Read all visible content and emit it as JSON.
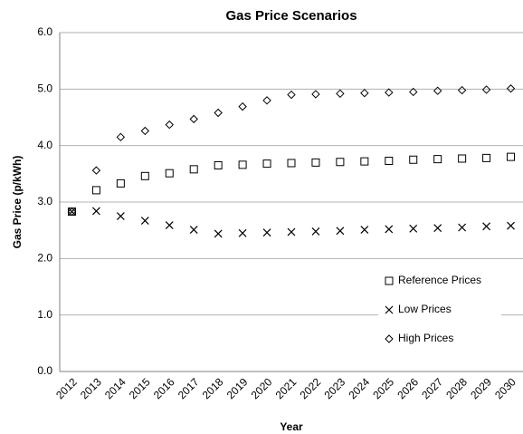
{
  "chart_data": {
    "type": "scatter",
    "title": "Gas Price Scenarios",
    "x_label": "Year",
    "y_label": "Gas Price (p/kWh)",
    "categories": [
      "2012",
      "2013",
      "2014",
      "2015",
      "2016",
      "2017",
      "2018",
      "2019",
      "2020",
      "2021",
      "2022",
      "2023",
      "2024",
      "2025",
      "2026",
      "2027",
      "2028",
      "2029",
      "2030"
    ],
    "series": [
      {
        "name": "Reference Prices",
        "color": "#000000",
        "marker": "square",
        "values": [
          2.83,
          3.21,
          3.33,
          3.46,
          3.51,
          3.58,
          3.65,
          3.66,
          3.68,
          3.69,
          3.7,
          3.71,
          3.72,
          3.73,
          3.75,
          3.76,
          3.77,
          3.78,
          3.8
        ]
      },
      {
        "name": "Low Prices",
        "color": "#000000",
        "marker": "cross",
        "values": [
          2.83,
          2.84,
          2.75,
          2.67,
          2.59,
          2.51,
          2.44,
          2.45,
          2.46,
          2.47,
          2.48,
          2.49,
          2.51,
          2.52,
          2.53,
          2.54,
          2.55,
          2.57,
          2.58
        ]
      },
      {
        "name": "High Prices",
        "color": "#000000",
        "marker": "diamond",
        "values": [
          2.83,
          3.56,
          4.15,
          4.26,
          4.37,
          4.47,
          4.58,
          4.69,
          4.8,
          4.9,
          4.91,
          4.92,
          4.93,
          4.94,
          4.95,
          4.97,
          4.98,
          4.99,
          5.01
        ]
      }
    ],
    "ylim": [
      0,
      6
    ],
    "yticks": [
      {
        "value": 0,
        "label": "0.0"
      },
      {
        "value": 1,
        "label": "1.0"
      },
      {
        "value": 2,
        "label": "2.0"
      },
      {
        "value": 3,
        "label": "3.0"
      },
      {
        "value": 4,
        "label": "4.0"
      },
      {
        "value": 5,
        "label": "5.0"
      },
      {
        "value": 6,
        "label": "6.0"
      }
    ],
    "grid": true,
    "legend": "lower right"
  }
}
